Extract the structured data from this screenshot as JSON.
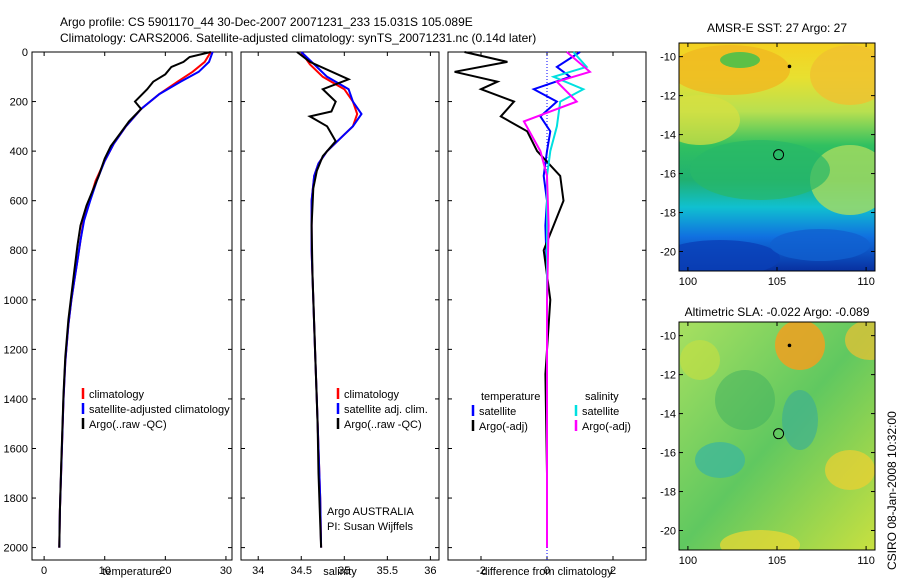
{
  "header": {
    "line1": "Argo profile: CS 5901170_44 30-Dec-2007 20071231_233 15.031S 105.089E",
    "line2": "Climatology: CARS2006. Satellite-adjusted climatology: synTS_20071231.nc (0.14d later)"
  },
  "footer": {
    "vertical_text": "CSIRO 08-Jan-2008 10:32:00"
  },
  "colors": {
    "climatology": "#ff0000",
    "satellite": "#0000ff",
    "argo": "#000000",
    "argo_adj_sal": "#ff00ff",
    "satellite_sal": "#00e0e0"
  },
  "chart_data": [
    {
      "type": "line",
      "xlabel": "temperature",
      "ylabel": "",
      "xlim": [
        -2,
        31
      ],
      "ylim": [
        2050,
        0
      ],
      "xticks": [
        0,
        10,
        20,
        30
      ],
      "yticks": [
        0,
        200,
        400,
        600,
        800,
        1000,
        1200,
        1400,
        1600,
        1800,
        2000
      ],
      "legend": [
        "climatology",
        "satellite-adjusted climatology",
        "Argo(..raw -QC)"
      ],
      "series": [
        {
          "name": "climatology",
          "color": "#ff0000",
          "x": [
            27.5,
            26.5,
            24.5,
            22,
            19,
            16,
            13.5,
            11.5,
            10,
            8.5,
            7.5,
            6.5,
            6,
            5.5,
            5,
            4.5,
            4,
            3.5,
            3.2,
            3,
            2.8,
            2.6,
            2.5
          ],
          "y": [
            0,
            40,
            80,
            120,
            170,
            230,
            300,
            370,
            440,
            520,
            600,
            680,
            760,
            840,
            920,
            1000,
            1100,
            1250,
            1400,
            1550,
            1700,
            1850,
            2000
          ]
        },
        {
          "name": "satellite-adjusted climatology",
          "color": "#0000ff",
          "x": [
            27.8,
            27.2,
            25.5,
            22.5,
            19,
            16,
            13.5,
            11.5,
            10,
            8.7,
            7.6,
            6.6,
            6,
            5.5,
            5,
            4.5,
            4,
            3.5,
            3.2,
            3,
            2.8,
            2.6,
            2.5
          ],
          "y": [
            0,
            40,
            80,
            120,
            170,
            230,
            300,
            370,
            440,
            520,
            600,
            680,
            760,
            840,
            920,
            1000,
            1100,
            1250,
            1400,
            1550,
            1700,
            1850,
            2000
          ]
        },
        {
          "name": "Argo(..raw -QC)",
          "color": "#000000",
          "x": [
            27.5,
            24,
            23,
            21,
            20,
            18,
            17,
            15,
            16,
            14,
            12.5,
            11,
            10,
            9,
            8,
            7,
            6,
            5.5,
            5,
            4.5,
            4,
            3.5,
            3.2,
            3,
            2.8,
            2.6,
            2.5
          ],
          "y": [
            0,
            20,
            40,
            60,
            90,
            120,
            150,
            200,
            230,
            280,
            330,
            380,
            430,
            500,
            560,
            620,
            700,
            780,
            880,
            980,
            1080,
            1230,
            1380,
            1530,
            1680,
            1850,
            2000
          ]
        }
      ]
    },
    {
      "type": "line",
      "xlabel": "salinity",
      "ylabel": "",
      "xlim": [
        33.8,
        36.1
      ],
      "ylim": [
        2050,
        0
      ],
      "xticks": [
        34,
        34.5,
        35,
        35.5,
        36
      ],
      "legend": [
        "climatology",
        "satellite adj. clim.",
        "Argo(..raw -QC)"
      ],
      "annotation": [
        "Argo AUSTRALIA",
        "PI: Susan Wijffels"
      ],
      "series": [
        {
          "name": "climatology",
          "color": "#ff0000",
          "x": [
            34.5,
            34.6,
            34.75,
            35.0,
            35.1,
            35.15,
            35.1,
            34.95,
            34.8,
            34.7,
            34.65,
            34.62,
            34.62,
            34.64,
            34.66,
            34.68,
            34.7,
            34.72,
            34.73
          ],
          "y": [
            0,
            50,
            100,
            150,
            200,
            250,
            300,
            350,
            400,
            450,
            500,
            600,
            800,
            1000,
            1200,
            1400,
            1600,
            1800,
            2000
          ]
        },
        {
          "name": "satellite adj. clim.",
          "color": "#0000ff",
          "x": [
            34.5,
            34.65,
            34.8,
            35.05,
            35.1,
            35.2,
            35.1,
            34.95,
            34.8,
            34.7,
            34.65,
            34.62,
            34.62,
            34.64,
            34.66,
            34.68,
            34.7,
            34.72,
            34.73
          ],
          "y": [
            0,
            50,
            100,
            150,
            200,
            250,
            300,
            350,
            400,
            450,
            500,
            600,
            800,
            1000,
            1200,
            1400,
            1600,
            1800,
            2000
          ]
        },
        {
          "name": "Argo(..raw -QC)",
          "color": "#000000",
          "x": [
            34.45,
            34.6,
            35.05,
            34.75,
            34.9,
            34.85,
            34.6,
            34.8,
            34.9,
            34.75,
            34.68,
            34.64,
            34.62,
            34.63,
            34.65,
            34.67,
            34.69,
            34.7,
            34.72,
            34.73
          ],
          "y": [
            0,
            40,
            110,
            150,
            200,
            240,
            260,
            300,
            360,
            420,
            480,
            550,
            700,
            900,
            1100,
            1300,
            1500,
            1700,
            1900,
            2000
          ]
        }
      ]
    },
    {
      "type": "line",
      "xlabel": "difference from climatology",
      "ylabel": "",
      "xlim": [
        -3,
        3
      ],
      "ylim": [
        2050,
        0
      ],
      "xticks": [
        -2,
        0,
        2
      ],
      "legend_temperature": {
        "title": "temperature",
        "items": [
          "satellite",
          "Argo(-adj)"
        ]
      },
      "legend_salinity": {
        "title": "salinity",
        "items": [
          "satellite",
          "Argo(-adj)"
        ]
      },
      "series": [
        {
          "name": "satellite (temperature)",
          "color": "#0000ff",
          "x": [
            1.0,
            0.3,
            0.7,
            -0.4,
            0.3,
            -0.2,
            0.1,
            0.0,
            -0.1,
            0.0,
            -0.05,
            0.0,
            0.0,
            0.0,
            0.0,
            0.0
          ],
          "y": [
            0,
            60,
            100,
            150,
            200,
            260,
            320,
            400,
            500,
            600,
            700,
            900,
            1200,
            1500,
            1800,
            2000
          ]
        },
        {
          "name": "Argo(-adj) (temperature)",
          "color": "#000000",
          "x": [
            -2.5,
            -1.2,
            -2.8,
            -1.5,
            -2.0,
            -1.0,
            -1.4,
            -0.6,
            -0.3,
            0.4,
            0.5,
            0.2,
            -0.1,
            0.1,
            -0.05,
            0.0,
            0.0
          ],
          "y": [
            0,
            40,
            80,
            120,
            150,
            200,
            260,
            320,
            400,
            500,
            600,
            700,
            800,
            1000,
            1300,
            1700,
            2000
          ]
        },
        {
          "name": "satellite (salinity)",
          "color": "#00e0e0",
          "x": [
            0.8,
            1.2,
            0.2,
            1.1,
            0.4,
            0.3,
            0.1,
            0.0,
            0.0,
            0.0,
            0.0,
            0.0
          ],
          "y": [
            0,
            60,
            100,
            150,
            200,
            300,
            400,
            500,
            700,
            1000,
            1500,
            2000
          ]
        },
        {
          "name": "Argo(-adj) (salinity)",
          "color": "#ff00ff",
          "x": [
            0.6,
            1.3,
            0.3,
            0.9,
            -0.7,
            -0.2,
            0.0,
            0.05,
            0.0,
            0.0,
            0.0
          ],
          "y": [
            0,
            80,
            120,
            200,
            280,
            400,
            500,
            700,
            1000,
            1500,
            2000
          ]
        }
      ]
    },
    {
      "type": "heatmap",
      "title": "AMSR-E SST: 27 Argo: 27",
      "xlim": [
        99.5,
        110.5
      ],
      "ylim": [
        -21,
        -9.3
      ],
      "xticks": [
        100,
        105,
        110
      ],
      "yticks": [
        -10,
        -12,
        -14,
        -16,
        -18,
        -20
      ],
      "marker_profile": {
        "lon": 105.089,
        "lat": -15.031
      },
      "marker_dot": {
        "lon": 105.7,
        "lat": -10.5
      }
    },
    {
      "type": "heatmap",
      "title": "Altimetric SLA: -0.022 Argo: -0.089",
      "xlim": [
        99.5,
        110.5
      ],
      "ylim": [
        -21,
        -9.3
      ],
      "xticks": [
        100,
        105,
        110
      ],
      "yticks": [
        -10,
        -12,
        -14,
        -16,
        -18,
        -20
      ],
      "marker_profile": {
        "lon": 105.089,
        "lat": -15.031
      },
      "marker_dot": {
        "lon": 105.7,
        "lat": -10.5
      }
    }
  ]
}
